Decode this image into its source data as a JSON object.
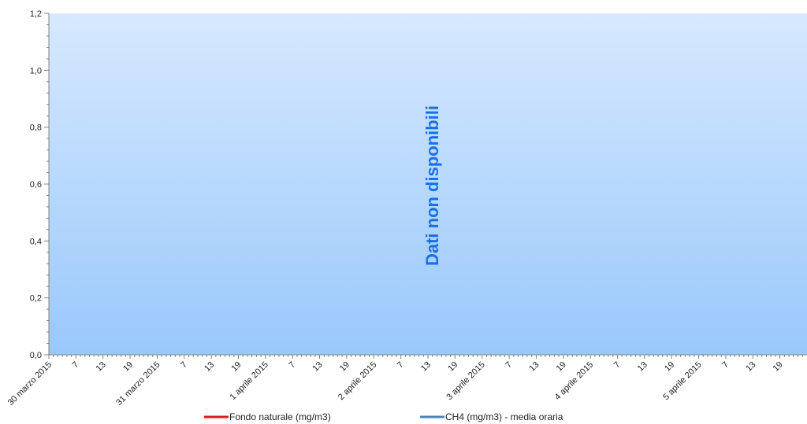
{
  "chart_data": {
    "type": "line",
    "title": "",
    "xlabel": "",
    "ylabel": "",
    "ylim": [
      0,
      1.2
    ],
    "y_ticks": [
      "0,0",
      "0,2",
      "0,4",
      "0,6",
      "0,8",
      "1,0",
      "1,2"
    ],
    "x_ticks": [
      "30 marzo 2015",
      "7",
      "13",
      "19",
      "31 marzo 2015",
      "7",
      "13",
      "19",
      "1 aprile 2015",
      "7",
      "13",
      "19",
      "2 aprile 2015",
      "7",
      "13",
      "19",
      "3 aprile 2015",
      "7",
      "13",
      "19",
      "4 aprile 2015",
      "7",
      "13",
      "19",
      "5 aprile 2015",
      "7",
      "13",
      "19"
    ],
    "series": [
      {
        "name": "Fondo naturale  (mg/m3)",
        "color": "#e8141c",
        "values": []
      },
      {
        "name": "CH4 (mg/m3)  - media oraria",
        "color": "#4f81bd",
        "values": []
      }
    ],
    "annotation": "Dati non disponibili",
    "grid": false,
    "legend_position": "bottom",
    "plot_gradient": {
      "top": "#d6e9ff",
      "bottom": "#99c8fb"
    }
  }
}
